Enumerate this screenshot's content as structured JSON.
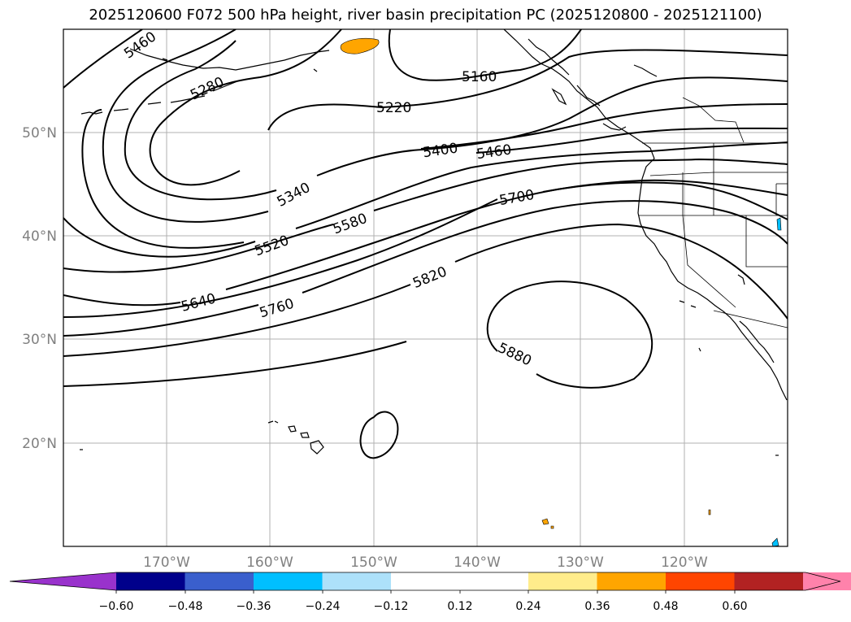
{
  "title": "2025120600 F072 500 hPa height, river basin precipitation PC (2025120800 - 2025121100)",
  "map": {
    "lat_labels": [
      "50°N",
      "40°N",
      "30°N",
      "20°N"
    ],
    "lon_labels": [
      "170°W",
      "160°W",
      "150°W",
      "140°W",
      "130°W",
      "120°W"
    ],
    "contour_labels": [
      "5460",
      "5280",
      "5160",
      "5220",
      "5400",
      "5460",
      "5340",
      "5700",
      "5580",
      "5520",
      "5820",
      "5640",
      "5760",
      "5880"
    ]
  },
  "colorbar": {
    "colors": [
      "#9932CC",
      "#00008B",
      "#3A5FCD",
      "#00BFFF",
      "#ADE1FA",
      "#FFFFFF",
      "#FFFFFF",
      "#FFEC8B",
      "#FFA500",
      "#FF4500",
      "#B22222",
      "#FF82AB",
      "#FF82AB"
    ],
    "ticks": [
      "−0.60",
      "−0.48",
      "−0.36",
      "−0.24",
      "−0.12",
      "0.12",
      "0.24",
      "0.36",
      "0.48",
      "0.60"
    ]
  }
}
